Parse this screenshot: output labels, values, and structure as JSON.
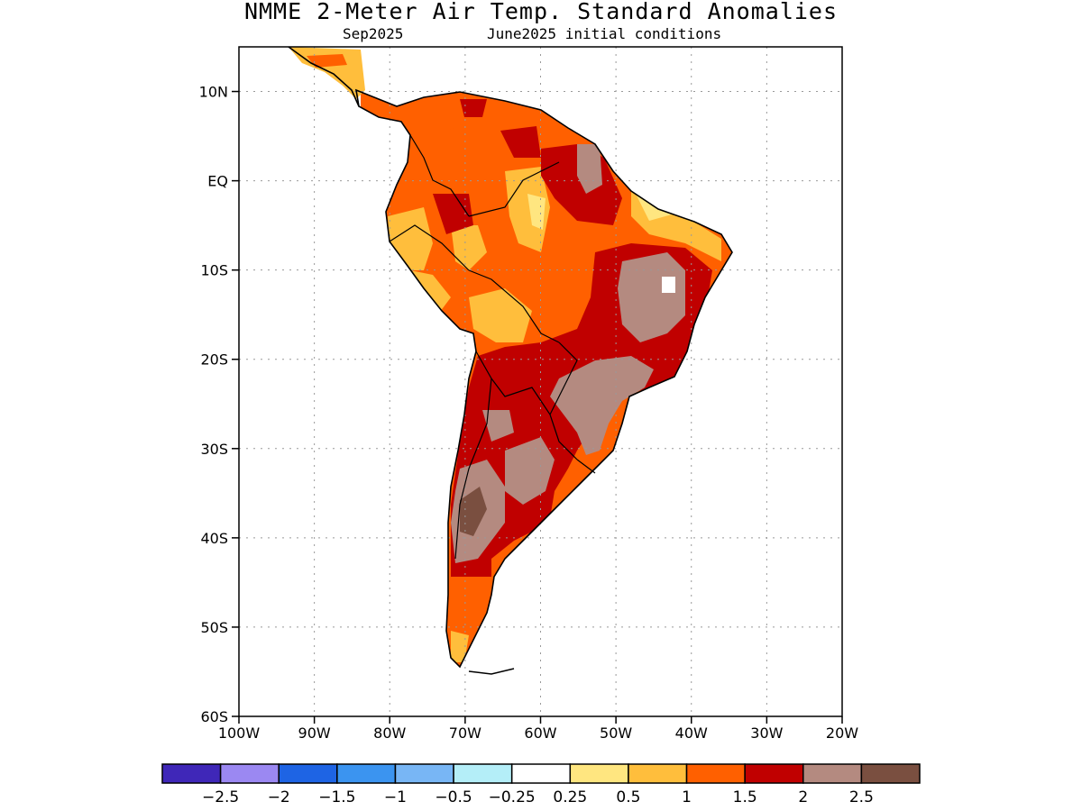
{
  "header": {
    "title": "NMME 2-Meter Air Temp. Standard Anomalies",
    "valid_month": "Sep2025",
    "init_label": "June2025 initial conditions"
  },
  "map": {
    "lon_range": [
      -100,
      -20
    ],
    "lat_range": [
      -60,
      15
    ],
    "lat_ticks": [
      {
        "value": 10,
        "label": "10N"
      },
      {
        "value": 0,
        "label": "EQ"
      },
      {
        "value": -10,
        "label": "10S"
      },
      {
        "value": -20,
        "label": "20S"
      },
      {
        "value": -30,
        "label": "30S"
      },
      {
        "value": -40,
        "label": "40S"
      },
      {
        "value": -50,
        "label": "50S"
      },
      {
        "value": -60,
        "label": "60S"
      }
    ],
    "lon_ticks": [
      {
        "value": -100,
        "label": "100W"
      },
      {
        "value": -90,
        "label": "90W"
      },
      {
        "value": -80,
        "label": "80W"
      },
      {
        "value": -70,
        "label": "70W"
      },
      {
        "value": -60,
        "label": "60W"
      },
      {
        "value": -50,
        "label": "50W"
      },
      {
        "value": -40,
        "label": "40W"
      },
      {
        "value": -30,
        "label": "30W"
      },
      {
        "value": -20,
        "label": "20W"
      }
    ],
    "grid": true
  },
  "colorbar": {
    "colors": [
      "#3f27b8",
      "#9b88f2",
      "#1e64e4",
      "#3b94f0",
      "#78b6f5",
      "#b4eef8",
      "#ffffff",
      "#ffe680",
      "#ffbe3c",
      "#ff6000",
      "#c00000",
      "#b48a80",
      "#7a4f40"
    ],
    "labels": [
      "−2.5",
      "−2",
      "−1.5",
      "−1",
      "−0.5",
      "−0.25",
      "0.25",
      "0.5",
      "1",
      "1.5",
      "2",
      "2.5"
    ]
  },
  "colors": {
    "land_outline": "#000000",
    "anomaly_0_5_1": "#ffe680",
    "anomaly_1": "#ffbe3c",
    "anomaly_1_5": "#ff6000",
    "anomaly_2": "#c00000",
    "anomaly_2_5": "#b48a80",
    "anomaly_above_2_5": "#7a4f40"
  }
}
